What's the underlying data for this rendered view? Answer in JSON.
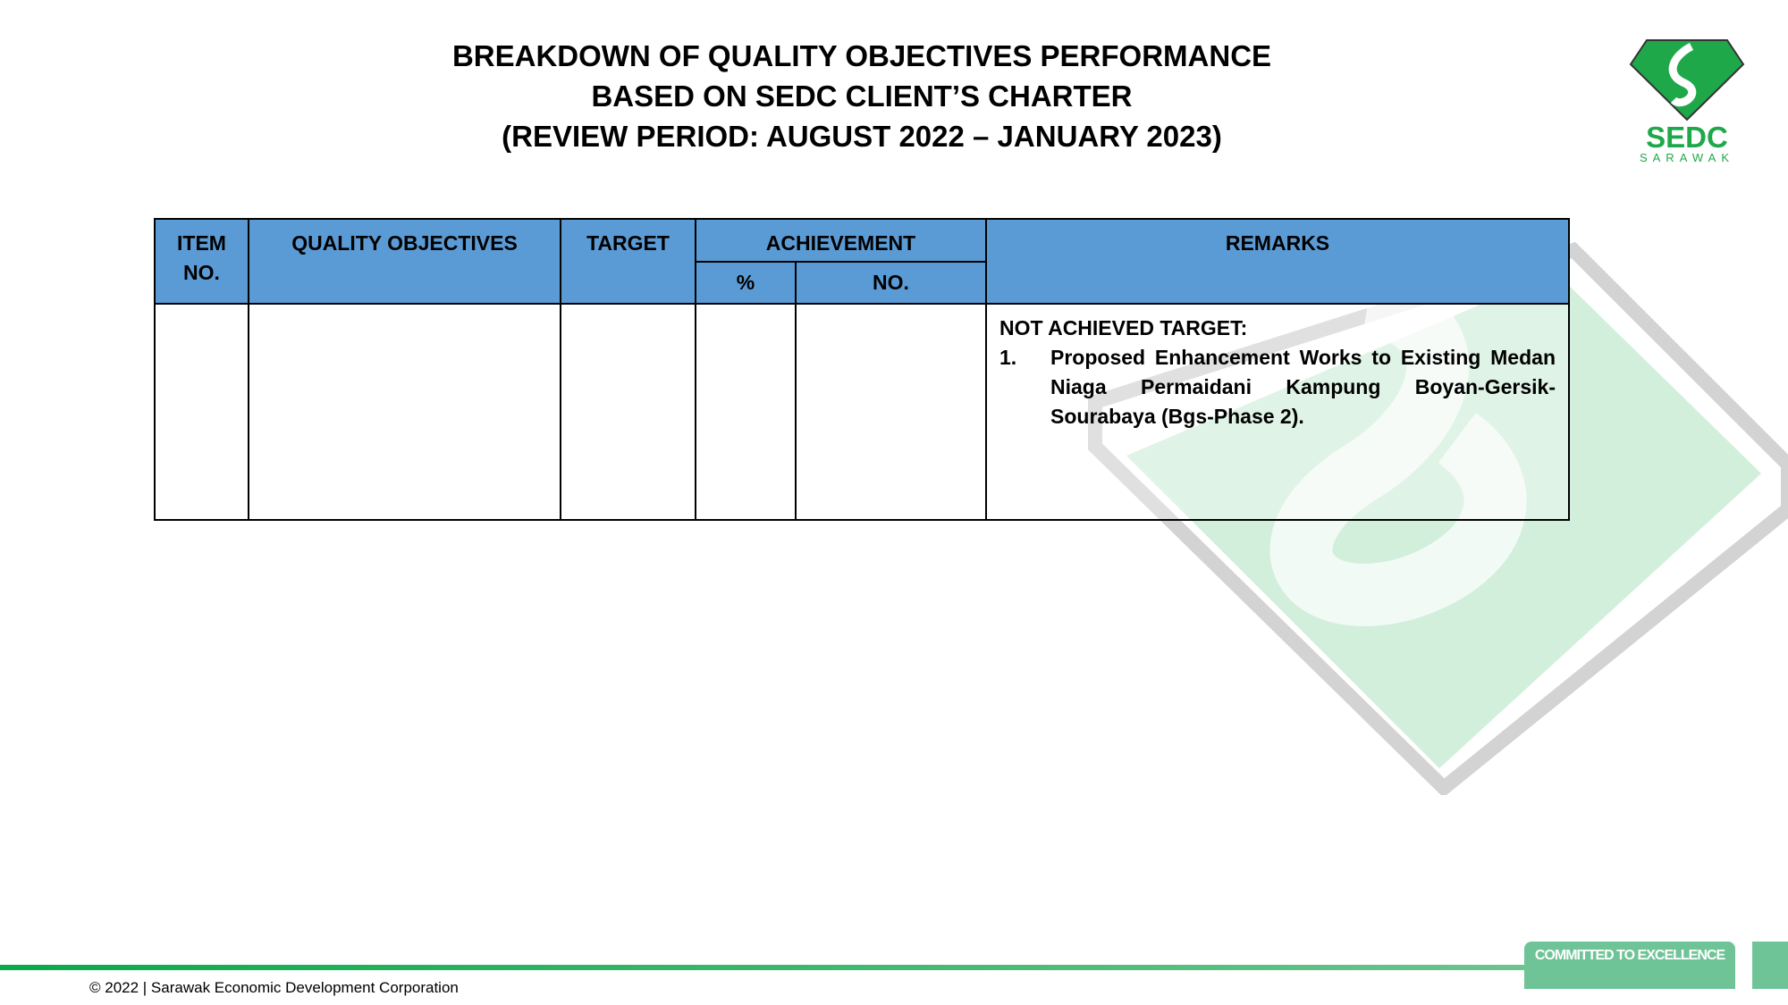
{
  "title": {
    "line1": "BREAKDOWN OF QUALITY OBJECTIVES PERFORMANCE",
    "line2": "BASED ON SEDC CLIENT’S CHARTER",
    "line3": "(REVIEW PERIOD: AUGUST 2022 – JANUARY 2023)"
  },
  "logo": {
    "name": "SEDC",
    "sub": "SARAWAK",
    "color": "#1fa84a"
  },
  "table": {
    "headers": {
      "item": "ITEM NO.",
      "objectives": "QUALITY OBJECTIVES",
      "target": "TARGET",
      "achievement": "ACHIEVEMENT",
      "percent": "%",
      "no": "NO.",
      "remarks": "REMARKS"
    },
    "header_color": "#5b9bd5",
    "row": {
      "item": "",
      "objectives": "",
      "target": "",
      "percent": "",
      "no": "",
      "remarks": {
        "heading": "NOT ACHIEVED TARGET:",
        "items": [
          {
            "num": "1.",
            "text": "Proposed Enhancement Works to Existing Medan Niaga Permaidani Kampung Boyan-Gersik-Sourabaya (Bgs-Phase 2)."
          }
        ]
      }
    }
  },
  "footer": {
    "copyright": "© 2022 | Sarawak Economic Development Corporation",
    "badge": "COMMITTED TO EXCELLENCE",
    "accent": "#6fc497"
  }
}
